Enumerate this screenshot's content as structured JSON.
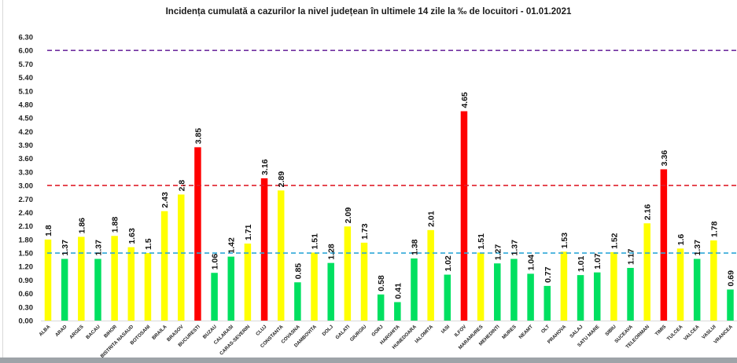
{
  "chart_data": {
    "type": "bar",
    "title": "Incidența cumulată a cazurilor la nivel județean în ultimele 14 zile la ‰ de locuitori - 01.01.2021",
    "xlabel": "",
    "ylabel": "",
    "ylim": [
      0,
      6.3
    ],
    "yticks": [
      "0.00",
      "0.30",
      "0.60",
      "0.90",
      "1.20",
      "1.50",
      "1.80",
      "2.10",
      "2.40",
      "2.70",
      "3.00",
      "3.30",
      "3.60",
      "3.90",
      "4.20",
      "4.50",
      "4.80",
      "5.10",
      "5.40",
      "5.70",
      "6.00",
      "6.30"
    ],
    "grid": false,
    "categories": [
      "ALBA",
      "ARAD",
      "ARGES",
      "BACAU",
      "BIHOR",
      "BISTRITA NASAUD",
      "BOTOSANI",
      "BRAILA",
      "BRASOV",
      "BUCURESTI",
      "BUZAU",
      "CALARASI",
      "CARAS-SEVERIN",
      "CLUJ",
      "CONSTANTA",
      "COVASNA",
      "DAMBOVITA",
      "DOLJ",
      "GALATI",
      "GIURGIU",
      "GORJ",
      "HARGHITA",
      "HUNEDOARA",
      "IALOMITA",
      "IASI",
      "ILFOV",
      "MARAMURES",
      "MEHEDINTI",
      "MURES",
      "NEAMT",
      "OLT",
      "PRAHOVA",
      "SALAJ",
      "SATU MARE",
      "SIBIU",
      "SUCEAVA",
      "TELEORMAN",
      "TIMIS",
      "TULCEA",
      "VALCEA",
      "VASLUI",
      "VRANCEA"
    ],
    "values": [
      1.8,
      1.37,
      1.86,
      1.37,
      1.88,
      1.63,
      1.5,
      2.43,
      2.8,
      3.85,
      1.06,
      1.42,
      1.71,
      3.16,
      2.89,
      0.85,
      1.51,
      1.28,
      2.09,
      1.73,
      0.58,
      0.41,
      1.38,
      2.01,
      1.02,
      4.65,
      1.51,
      1.27,
      1.37,
      1.04,
      0.77,
      1.53,
      1.01,
      1.07,
      1.52,
      1.17,
      2.16,
      3.36,
      1.6,
      1.37,
      1.78,
      0.69
    ],
    "data_labels": [
      "1.8",
      "1.37",
      "1.86",
      "1.37",
      "1.88",
      "1.63",
      "1.5",
      "2.43",
      "2.8",
      "3.85",
      "1.06",
      "1.42",
      "1.71",
      "3.16",
      "2.89",
      "0.85",
      "1.51",
      "1.28",
      "2.09",
      "1.73",
      "0.58",
      "0.41",
      "1.38",
      "2.01",
      "1.02",
      "4.65",
      "1.51",
      "1.27",
      "1.37",
      "1.04",
      "0.77",
      "1.53",
      "1.01",
      "1.07",
      "1.52",
      "1.17",
      "2.16",
      "3.36",
      "1.6",
      "1.37",
      "1.78",
      "0.69"
    ],
    "thresholds": [
      {
        "value": 6.0,
        "color": "#7030A0",
        "style": "dashed"
      },
      {
        "value": 3.0,
        "color": "#E0202C",
        "style": "dashed"
      },
      {
        "value": 1.5,
        "color": "#2EA8D8",
        "style": "dashed"
      }
    ],
    "color_rules": {
      "below_1_5": "#00E060",
      "between_1_5_and_3": "#FFFF00",
      "above_3": "#FF0000"
    }
  }
}
